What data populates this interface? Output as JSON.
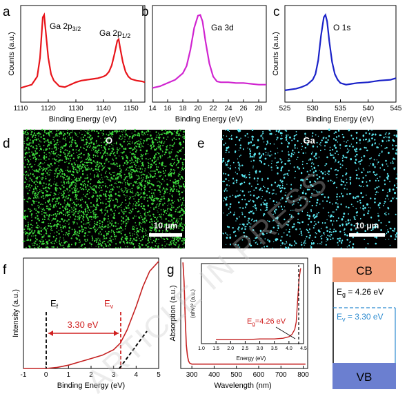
{
  "panels": {
    "a": {
      "label": "a"
    },
    "b": {
      "label": "b"
    },
    "c": {
      "label": "c"
    },
    "d": {
      "label": "d"
    },
    "e": {
      "label": "e"
    },
    "f": {
      "label": "f"
    },
    "g": {
      "label": "g"
    },
    "h": {
      "label": "h"
    }
  },
  "watermark": "ARTICLE IN PRESS",
  "chart_data": [
    {
      "id": "a",
      "type": "line",
      "xlabel": "Binding Energy (eV)",
      "ylabel": "Counts (a.u.)",
      "xlim": [
        1110,
        1155
      ],
      "xticks": [
        1110,
        1120,
        1130,
        1140,
        1150
      ],
      "color": "#e8141a",
      "annotations": [
        {
          "text": "Ga 2p",
          "sub": "3/2"
        },
        {
          "text": "Ga 2p",
          "sub": "1/2"
        }
      ],
      "series": [
        {
          "x": [
            1110,
            1112,
            1114,
            1116,
            1117,
            1118,
            1118.5,
            1119,
            1120,
            1121,
            1122,
            1124,
            1126,
            1128,
            1130,
            1132,
            1134,
            1136,
            1138,
            1140,
            1141,
            1142,
            1143,
            1144,
            1145,
            1145.5,
            1146,
            1147,
            1148,
            1149,
            1150,
            1152,
            1154,
            1155
          ],
          "y": [
            0.08,
            0.1,
            0.12,
            0.22,
            0.45,
            0.95,
            0.98,
            0.8,
            0.45,
            0.25,
            0.17,
            0.1,
            0.09,
            0.12,
            0.15,
            0.17,
            0.18,
            0.19,
            0.2,
            0.22,
            0.24,
            0.28,
            0.36,
            0.5,
            0.66,
            0.68,
            0.58,
            0.4,
            0.28,
            0.22,
            0.19,
            0.17,
            0.16,
            0.15
          ]
        }
      ]
    },
    {
      "id": "b",
      "type": "line",
      "xlabel": "Binding Energy (eV)",
      "ylabel": "",
      "xlim": [
        14,
        29
      ],
      "xticks": [
        14,
        16,
        18,
        20,
        22,
        24,
        26,
        28
      ],
      "color": "#d024d0",
      "annotations": [
        {
          "text": "Ga 3d"
        }
      ],
      "series": [
        {
          "x": [
            14,
            15,
            16,
            17,
            18,
            18.5,
            19,
            19.5,
            20,
            20.3,
            20.6,
            21,
            21.5,
            22,
            22.5,
            23,
            24,
            25,
            26,
            27,
            28,
            29
          ],
          "y": [
            0.08,
            0.1,
            0.14,
            0.18,
            0.26,
            0.35,
            0.55,
            0.82,
            0.97,
            0.98,
            0.9,
            0.65,
            0.38,
            0.22,
            0.16,
            0.15,
            0.15,
            0.14,
            0.14,
            0.13,
            0.12,
            0.12
          ]
        }
      ]
    },
    {
      "id": "c",
      "type": "line",
      "xlabel": "Binding Energy (eV)",
      "ylabel": "Counts (a.u.)",
      "xlim": [
        525,
        545
      ],
      "xticks": [
        525,
        530,
        535,
        540,
        545
      ],
      "color": "#1a22c8",
      "annotations": [
        {
          "text": "O 1s"
        }
      ],
      "series": [
        {
          "x": [
            525,
            527,
            528,
            529,
            530,
            530.5,
            531,
            531.5,
            532,
            532.3,
            532.6,
            533,
            533.5,
            534,
            534.5,
            535,
            536,
            537,
            538,
            540,
            542,
            544,
            545
          ],
          "y": [
            0.05,
            0.07,
            0.09,
            0.12,
            0.18,
            0.25,
            0.42,
            0.72,
            0.95,
            0.98,
            0.9,
            0.65,
            0.4,
            0.25,
            0.18,
            0.14,
            0.12,
            0.13,
            0.14,
            0.15,
            0.17,
            0.18,
            0.2
          ]
        }
      ]
    },
    {
      "id": "f",
      "type": "line",
      "xlabel": "Binding Energy (eV)",
      "ylabel": "Intensity (a.u.)",
      "xlim": [
        -1,
        5
      ],
      "xticks": [
        -1,
        0,
        1,
        2,
        3,
        4,
        5
      ],
      "color": "#c42020",
      "annotations": [
        {
          "text": "E",
          "sub": "f"
        },
        {
          "text": "E",
          "sub": "v"
        },
        {
          "text": "3.30 eV"
        }
      ],
      "series": [
        {
          "x": [
            -1,
            0,
            0.5,
            1,
            1.5,
            2,
            2.5,
            3,
            3.3,
            3.6,
            4,
            4.3,
            4.6,
            5
          ],
          "y": [
            0.0,
            0.0,
            0.01,
            0.03,
            0.06,
            0.09,
            0.12,
            0.17,
            0.23,
            0.35,
            0.56,
            0.74,
            0.88,
            0.97
          ]
        }
      ]
    },
    {
      "id": "g",
      "type": "line",
      "xlabel": "Wavelength (nm)",
      "ylabel": "Absorption (a.u.)",
      "xlim": [
        250,
        820
      ],
      "xticks": [
        300,
        400,
        500,
        600,
        700,
        800
      ],
      "color": "#c42020",
      "series": [
        {
          "x": [
            260,
            265,
            270,
            275,
            280,
            285,
            290,
            300,
            320,
            350,
            400,
            500,
            600,
            700,
            800,
            810
          ],
          "y": [
            0.98,
            0.8,
            0.45,
            0.2,
            0.1,
            0.05,
            0.03,
            0.02,
            0.02,
            0.02,
            0.02,
            0.02,
            0.02,
            0.02,
            0.02,
            0.02
          ]
        }
      ],
      "inset": {
        "xlabel": "Energy (eV)",
        "ylabel": "(αhν)² (a.u.)",
        "xlim": [
          1.0,
          4.5
        ],
        "xticks": [
          "1.0",
          "1.5",
          "2.0",
          "2.5",
          "3.0",
          "3.5",
          "4.0",
          "4.5"
        ],
        "annotation": "E",
        "annotation_sub": "g",
        "annotation_value": "=4.26 eV",
        "series": [
          {
            "x": [
              1.5,
              2.0,
              2.5,
              3.0,
              3.5,
              3.8,
              4.0,
              4.1,
              4.2,
              4.25,
              4.3,
              4.35,
              4.4
            ],
            "y": [
              0.01,
              0.01,
              0.01,
              0.02,
              0.02,
              0.03,
              0.05,
              0.08,
              0.15,
              0.25,
              0.55,
              0.85,
              0.98
            ]
          }
        ]
      }
    }
  ],
  "maps": {
    "d": {
      "element": "O",
      "scalebar": "10 μm",
      "color": "#3cd83c"
    },
    "e": {
      "element": "Ga",
      "scalebar": "10 μm",
      "color": "#5ae6f0"
    }
  },
  "band_diagram": {
    "cb": "CB",
    "vb": "VB",
    "eg_label": "E",
    "eg_sub": "g",
    "eg_value": " = 4.26 eV",
    "ev_label": "E",
    "ev_sub": "v",
    "ev_value": " = 3.30 eV",
    "cb_color": "#f3a07a",
    "vb_color": "#6b7fd0",
    "ev_color": "#2a8ad0"
  }
}
